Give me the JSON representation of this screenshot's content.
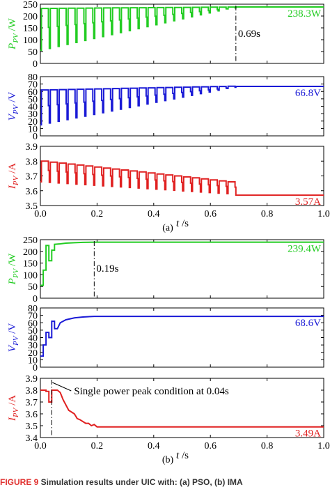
{
  "chart_data": [
    {
      "type": "line",
      "panel": "a-1",
      "ylabel": {
        "sym": "P",
        "sub": "PV",
        "unit": "/W"
      },
      "xlim": [
        0,
        1
      ],
      "ylim": [
        0,
        250
      ],
      "yticks": [
        0,
        50,
        100,
        150,
        200,
        250
      ],
      "color": "#22cc22",
      "steady_value": 238.3,
      "steady_label": "238.3W",
      "marker": {
        "x": 0.69,
        "label": "0.69s"
      },
      "oscillation": {
        "t_end": 0.69,
        "cycles": 22,
        "low_start": 55,
        "low_end": 230,
        "high_start": 232,
        "high_end": 238
      },
      "yscale": 1
    },
    {
      "type": "line",
      "panel": "a-2",
      "ylabel": {
        "sym": "V",
        "sub": "PV",
        "unit": "/V"
      },
      "xlim": [
        0,
        1
      ],
      "ylim": [
        0,
        80
      ],
      "yticks": [
        0,
        10,
        20,
        30,
        40,
        50,
        60,
        70,
        80
      ],
      "color": "#1a1ad6",
      "steady_value": 66.8,
      "steady_label": "66.8V",
      "oscillation": {
        "t_end": 0.69,
        "cycles": 22,
        "low_start": 15,
        "low_end": 64,
        "high_start": 62,
        "high_end": 67
      }
    },
    {
      "type": "line",
      "panel": "a-3",
      "ylabel": {
        "sym": "I",
        "sub": "PV",
        "unit": "/A"
      },
      "xlim": [
        0,
        1
      ],
      "ylim": [
        3.5,
        3.9
      ],
      "yticks": [
        3.5,
        3.6,
        3.7,
        3.8,
        3.9
      ],
      "xticks": [
        0.0,
        0.2,
        0.4,
        0.6,
        0.8,
        1.0
      ],
      "xlabel": {
        "sym": "t",
        "unit": "/s"
      },
      "color": "#e02020",
      "steady_value": 3.57,
      "steady_label": "3.57A",
      "oscillation": {
        "t_end": 0.69,
        "cycles": 22,
        "low_start": 3.66,
        "low_end": 3.58,
        "high_start": 3.8,
        "high_end": 3.66
      }
    },
    {
      "type": "line",
      "panel": "b-1",
      "ylabel": {
        "sym": "P",
        "sub": "PV",
        "unit": "/W"
      },
      "xlim": [
        0,
        1
      ],
      "ylim": [
        0,
        250
      ],
      "yticks": [
        0,
        50,
        100,
        150,
        200,
        250
      ],
      "color": "#22cc22",
      "steady_value": 239.4,
      "steady_label": "239.4W",
      "marker": {
        "x": 0.19,
        "label": "0.19s"
      },
      "points": [
        [
          0,
          55
        ],
        [
          0.01,
          55
        ],
        [
          0.01,
          120
        ],
        [
          0.02,
          120
        ],
        [
          0.02,
          225
        ],
        [
          0.03,
          225
        ],
        [
          0.03,
          160
        ],
        [
          0.04,
          160
        ],
        [
          0.04,
          205
        ],
        [
          0.05,
          205
        ],
        [
          0.05,
          230
        ],
        [
          0.07,
          232
        ],
        [
          0.09,
          235
        ],
        [
          0.12,
          237
        ],
        [
          0.15,
          238.5
        ],
        [
          0.19,
          239.4
        ],
        [
          1.0,
          239.4
        ]
      ]
    },
    {
      "type": "line",
      "panel": "b-2",
      "ylabel": {
        "sym": "V",
        "sub": "PV",
        "unit": "/V"
      },
      "xlim": [
        0,
        1
      ],
      "ylim": [
        0,
        80
      ],
      "yticks": [
        0,
        10,
        20,
        30,
        40,
        50,
        60,
        70,
        80
      ],
      "color": "#1a1ad6",
      "steady_value": 68.6,
      "steady_label": "68.6V",
      "points": [
        [
          0,
          15
        ],
        [
          0.01,
          15
        ],
        [
          0.01,
          30
        ],
        [
          0.02,
          30
        ],
        [
          0.02,
          47
        ],
        [
          0.03,
          47
        ],
        [
          0.03,
          40
        ],
        [
          0.04,
          40
        ],
        [
          0.04,
          62
        ],
        [
          0.05,
          62
        ],
        [
          0.05,
          52
        ],
        [
          0.06,
          52
        ],
        [
          0.07,
          60
        ],
        [
          0.09,
          64
        ],
        [
          0.12,
          66.5
        ],
        [
          0.15,
          67.8
        ],
        [
          0.19,
          68.6
        ],
        [
          1.0,
          68.6
        ]
      ]
    },
    {
      "type": "line",
      "panel": "b-3",
      "ylabel": {
        "sym": "I",
        "sub": "PV",
        "unit": "/A"
      },
      "xlim": [
        0,
        1
      ],
      "ylim": [
        3.4,
        3.9
      ],
      "yticks": [
        3.4,
        3.5,
        3.6,
        3.7,
        3.8,
        3.9
      ],
      "xticks": [
        0.0,
        0.2,
        0.4,
        0.6,
        0.8,
        1.0
      ],
      "xlabel": {
        "sym": "t",
        "unit": "/s"
      },
      "color": "#e02020",
      "steady_value": 3.49,
      "steady_label": "3.49A",
      "marker": {
        "x": 0.04
      },
      "annotation": "Single power peak condition at 0.04s",
      "points": [
        [
          0,
          3.8
        ],
        [
          0.02,
          3.8
        ],
        [
          0.02,
          3.79
        ],
        [
          0.03,
          3.79
        ],
        [
          0.03,
          3.7
        ],
        [
          0.04,
          3.7
        ],
        [
          0.04,
          3.8
        ],
        [
          0.06,
          3.8
        ],
        [
          0.07,
          3.78
        ],
        [
          0.08,
          3.72
        ],
        [
          0.1,
          3.63
        ],
        [
          0.12,
          3.6
        ],
        [
          0.13,
          3.56
        ],
        [
          0.14,
          3.55
        ],
        [
          0.16,
          3.52
        ],
        [
          0.17,
          3.52
        ],
        [
          0.18,
          3.5
        ],
        [
          0.19,
          3.51
        ],
        [
          0.2,
          3.49
        ],
        [
          1.0,
          3.49
        ]
      ]
    }
  ],
  "labels": {
    "a": "(a)",
    "b": "(b)"
  },
  "caption": {
    "fig_no": "FIGURE 9",
    "text": "   Simulation results under UIC with: (a) PSO, (b) IMA"
  }
}
